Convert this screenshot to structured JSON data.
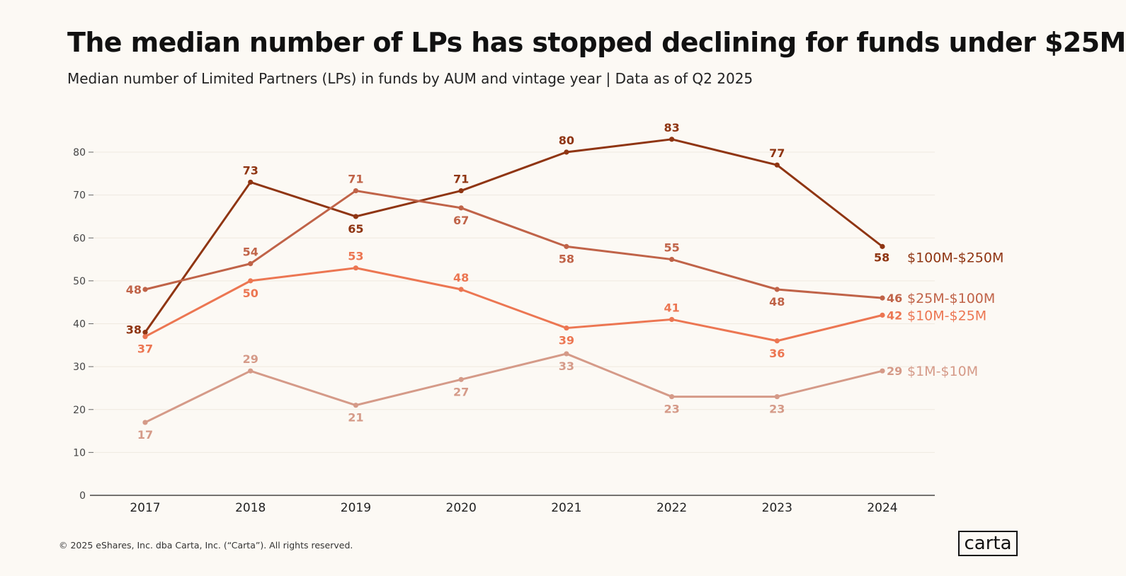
{
  "chart_data": {
    "type": "line",
    "title": "The median number of LPs has stopped declining for funds under $25M",
    "subtitle": "Median number of Limited Partners (LPs) in funds by AUM and vintage year | Data as of Q2 2025",
    "x": [
      "2017",
      "2018",
      "2019",
      "2020",
      "2021",
      "2022",
      "2023",
      "2024"
    ],
    "ylim": [
      0,
      80
    ],
    "yticks": [
      0,
      10,
      20,
      30,
      40,
      50,
      60,
      70,
      80
    ],
    "grid": true,
    "legend": "inline-right",
    "series": [
      {
        "name": "$100M-$250M",
        "color": "#8f3512",
        "values": [
          38,
          73,
          65,
          71,
          80,
          83,
          77,
          58
        ],
        "labels": [
          "38",
          "73",
          "65",
          "71",
          "80",
          "83",
          "77",
          "58"
        ]
      },
      {
        "name": "$25M-$100M",
        "color": "#c06348",
        "values": [
          48,
          54,
          71,
          67,
          58,
          55,
          48,
          46
        ],
        "labels": [
          "48",
          "54",
          "71",
          "67",
          "58",
          "55",
          "48",
          "46"
        ]
      },
      {
        "name": "$10M-$25M",
        "color": "#ec7652",
        "values": [
          37,
          50,
          53,
          48,
          39,
          41,
          36,
          42
        ],
        "labels": [
          "37",
          "50",
          "53",
          "48",
          "39",
          "41",
          "36",
          "42"
        ]
      },
      {
        "name": "$1M-$10M",
        "color": "#d59a88",
        "values": [
          17,
          29,
          21,
          27,
          33,
          23,
          23,
          29
        ],
        "labels": [
          "17",
          "29",
          "21",
          "27",
          "33",
          "23",
          "23",
          "29"
        ]
      }
    ]
  },
  "footer": {
    "copyright": "© 2025 eShares, Inc. dba Carta, Inc. (“Carta”). All rights reserved."
  },
  "logo": {
    "text": "carta"
  }
}
